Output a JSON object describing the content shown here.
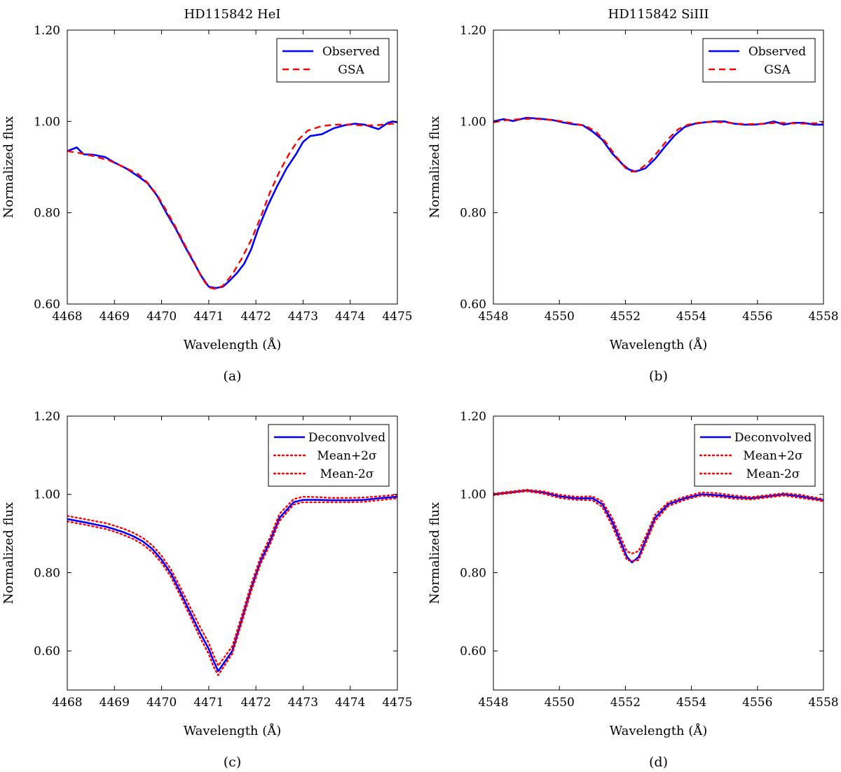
{
  "chart_data": [
    {
      "panel_label": "(a)",
      "type": "line",
      "title": "HD115842 HeI",
      "xlabel": "Wavelength (Å)",
      "ylabel": "Normalized flux",
      "xlim": [
        4468,
        4475
      ],
      "ylim": [
        0.6,
        1.2
      ],
      "xticks": [
        "4468",
        "4469",
        "4470",
        "4471",
        "4472",
        "4473",
        "4474",
        "4475"
      ],
      "yticks": [
        "0.60",
        "0.80",
        "1.00",
        "1.20"
      ],
      "legend_position": "top-right",
      "series": [
        {
          "name": "Observed",
          "color": "#0000ff",
          "style": "solid",
          "x": [
            4468.0,
            4468.2,
            4468.35,
            4468.55,
            4468.8,
            4469.0,
            4469.25,
            4469.5,
            4469.7,
            4469.9,
            4470.1,
            4470.3,
            4470.5,
            4470.7,
            4470.85,
            4471.0,
            4471.15,
            4471.3,
            4471.45,
            4471.6,
            4471.75,
            4471.9,
            4472.05,
            4472.25,
            4472.45,
            4472.65,
            4472.85,
            4473.0,
            4473.15,
            4473.4,
            4473.65,
            4473.9,
            4474.1,
            4474.3,
            4474.45,
            4474.6,
            4474.8,
            4474.9,
            4475.0
          ],
          "y": [
            0.935,
            0.943,
            0.928,
            0.927,
            0.922,
            0.91,
            0.897,
            0.88,
            0.865,
            0.838,
            0.8,
            0.765,
            0.725,
            0.688,
            0.66,
            0.638,
            0.635,
            0.638,
            0.652,
            0.668,
            0.688,
            0.72,
            0.765,
            0.815,
            0.858,
            0.897,
            0.928,
            0.955,
            0.968,
            0.972,
            0.985,
            0.992,
            0.995,
            0.993,
            0.988,
            0.983,
            0.997,
            1.0,
            0.998
          ]
        },
        {
          "name": "GSA",
          "color": "#ff0000",
          "style": "dashed",
          "x": [
            4468.0,
            4468.3,
            4468.6,
            4468.9,
            4469.2,
            4469.5,
            4469.7,
            4469.9,
            4470.1,
            4470.3,
            4470.5,
            4470.7,
            4470.85,
            4471.0,
            4471.15,
            4471.3,
            4471.5,
            4471.7,
            4471.9,
            4472.1,
            4472.3,
            4472.5,
            4472.7,
            4472.9,
            4473.1,
            4473.4,
            4473.7,
            4474.0,
            4474.3,
            4474.6,
            4474.8,
            4475.0
          ],
          "y": [
            0.935,
            0.93,
            0.923,
            0.914,
            0.9,
            0.885,
            0.866,
            0.84,
            0.805,
            0.768,
            0.728,
            0.69,
            0.658,
            0.636,
            0.633,
            0.64,
            0.665,
            0.7,
            0.74,
            0.79,
            0.845,
            0.89,
            0.928,
            0.96,
            0.98,
            0.99,
            0.993,
            0.993,
            0.991,
            0.992,
            0.994,
            0.996
          ]
        }
      ]
    },
    {
      "panel_label": "(b)",
      "type": "line",
      "title": "HD115842 SiIII",
      "xlabel": "Wavelength (Å)",
      "ylabel": "Normalized flux",
      "xlim": [
        4548,
        4558
      ],
      "ylim": [
        0.6,
        1.2
      ],
      "xticks": [
        "4548",
        "4550",
        "4552",
        "4554",
        "4556",
        "4558"
      ],
      "yticks": [
        "0.60",
        "0.80",
        "1.00",
        "1.20"
      ],
      "legend_position": "top-right",
      "series": [
        {
          "name": "Observed",
          "color": "#0000ff",
          "style": "solid",
          "x": [
            4548.0,
            4548.3,
            4548.6,
            4549.0,
            4549.4,
            4549.8,
            4550.1,
            4550.4,
            4550.7,
            4551.0,
            4551.3,
            4551.6,
            4551.9,
            4552.1,
            4552.3,
            4552.6,
            4552.9,
            4553.2,
            4553.5,
            4553.8,
            4554.1,
            4554.4,
            4554.7,
            4555.0,
            4555.3,
            4555.6,
            4555.9,
            4556.2,
            4556.5,
            4556.8,
            4557.1,
            4557.4,
            4557.7,
            4558.0
          ],
          "y": [
            1.0,
            1.005,
            1.001,
            1.008,
            1.006,
            1.003,
            0.998,
            0.994,
            0.992,
            0.978,
            0.96,
            0.93,
            0.907,
            0.895,
            0.89,
            0.897,
            0.918,
            0.945,
            0.97,
            0.988,
            0.995,
            0.998,
            1.0,
            1.0,
            0.995,
            0.993,
            0.993,
            0.995,
            1.0,
            0.993,
            0.997,
            0.997,
            0.993,
            0.993
          ]
        },
        {
          "name": "GSA",
          "color": "#ff0000",
          "style": "dashed",
          "x": [
            4548.0,
            4548.4,
            4548.8,
            4549.2,
            4549.6,
            4550.0,
            4550.4,
            4550.8,
            4551.1,
            4551.4,
            4551.7,
            4552.0,
            4552.2,
            4552.4,
            4552.7,
            4553.0,
            4553.3,
            4553.6,
            4553.9,
            4554.2,
            4554.6,
            4555.0,
            4555.4,
            4555.8,
            4556.2,
            4556.6,
            4557.0,
            4557.4,
            4557.8,
            4558.0
          ],
          "y": [
            0.998,
            1.003,
            1.005,
            1.006,
            1.004,
            1.001,
            0.996,
            0.99,
            0.978,
            0.955,
            0.925,
            0.898,
            0.89,
            0.893,
            0.91,
            0.935,
            0.962,
            0.983,
            0.993,
            0.997,
            0.999,
            0.998,
            0.995,
            0.994,
            0.995,
            0.997,
            0.996,
            0.995,
            0.996,
            0.998
          ]
        }
      ]
    },
    {
      "panel_label": "(c)",
      "type": "line",
      "title": "",
      "xlabel": "Wavelength (Å)",
      "ylabel": "Normalized flux",
      "xlim": [
        4468,
        4475
      ],
      "ylim": [
        0.5,
        1.2
      ],
      "xticks": [
        "4468",
        "4469",
        "4470",
        "4471",
        "4472",
        "4473",
        "4474",
        "4475"
      ],
      "yticks": [
        "0.60",
        "0.80",
        "1.00",
        "1.20"
      ],
      "legend_position": "top-right",
      "series": [
        {
          "name": "Deconvolved",
          "color": "#0000ff",
          "style": "solid",
          "x": [
            4468.0,
            4468.4,
            4468.8,
            4469.0,
            4469.2,
            4469.4,
            4469.6,
            4469.8,
            4470.0,
            4470.2,
            4470.4,
            4470.6,
            4470.8,
            4471.0,
            4471.1,
            4471.2,
            4471.5,
            4471.7,
            4471.9,
            4472.1,
            4472.3,
            4472.5,
            4472.8,
            4473.0,
            4473.3,
            4473.6,
            4474.0,
            4474.3,
            4474.6,
            4475.0
          ],
          "y": [
            0.937,
            0.928,
            0.918,
            0.911,
            0.903,
            0.893,
            0.88,
            0.861,
            0.833,
            0.798,
            0.75,
            0.7,
            0.65,
            0.605,
            0.575,
            0.548,
            0.6,
            0.68,
            0.76,
            0.83,
            0.88,
            0.94,
            0.98,
            0.986,
            0.986,
            0.985,
            0.985,
            0.986,
            0.99,
            0.994
          ]
        },
        {
          "name": "Mean+2σ",
          "color": "#ff0000",
          "style": "dotted",
          "x": [
            4468.0,
            4468.4,
            4468.8,
            4469.0,
            4469.2,
            4469.4,
            4469.6,
            4469.8,
            4470.0,
            4470.2,
            4470.4,
            4470.6,
            4470.8,
            4471.0,
            4471.1,
            4471.2,
            4471.5,
            4471.7,
            4471.9,
            4472.1,
            4472.3,
            4472.5,
            4472.8,
            4473.0,
            4473.3,
            4473.6,
            4474.0,
            4474.3,
            4474.6,
            4475.0
          ],
          "y": [
            0.945,
            0.936,
            0.927,
            0.92,
            0.912,
            0.902,
            0.889,
            0.87,
            0.843,
            0.808,
            0.762,
            0.713,
            0.665,
            0.62,
            0.59,
            0.562,
            0.612,
            0.69,
            0.77,
            0.84,
            0.89,
            0.95,
            0.988,
            0.994,
            0.993,
            0.991,
            0.991,
            0.992,
            0.995,
            0.999
          ]
        },
        {
          "name": "Mean-2σ",
          "color": "#ff0000",
          "style": "dotted",
          "x": [
            4468.0,
            4468.4,
            4468.8,
            4469.0,
            4469.2,
            4469.4,
            4469.6,
            4469.8,
            4470.0,
            4470.2,
            4470.4,
            4470.6,
            4470.8,
            4471.0,
            4471.1,
            4471.2,
            4471.5,
            4471.7,
            4471.9,
            4472.1,
            4472.3,
            4472.5,
            4472.8,
            4473.0,
            4473.3,
            4473.6,
            4474.0,
            4474.3,
            4474.6,
            4475.0
          ],
          "y": [
            0.931,
            0.922,
            0.912,
            0.905,
            0.896,
            0.886,
            0.872,
            0.853,
            0.825,
            0.789,
            0.74,
            0.69,
            0.638,
            0.592,
            0.56,
            0.538,
            0.593,
            0.672,
            0.752,
            0.822,
            0.872,
            0.932,
            0.974,
            0.98,
            0.98,
            0.98,
            0.98,
            0.981,
            0.985,
            0.99
          ]
        }
      ]
    },
    {
      "panel_label": "(d)",
      "type": "line",
      "title": "",
      "xlabel": "Wavelength (Å)",
      "ylabel": "Normalized flux",
      "xlim": [
        4548,
        4558
      ],
      "ylim": [
        0.5,
        1.2
      ],
      "xticks": [
        "4548",
        "4550",
        "4552",
        "4554",
        "4556",
        "4558"
      ],
      "yticks": [
        "0.60",
        "0.80",
        "1.00",
        "1.20"
      ],
      "legend_position": "top-right",
      "series": [
        {
          "name": "Deconvolved",
          "color": "#0000ff",
          "style": "solid",
          "x": [
            4548.0,
            4548.5,
            4549.0,
            4549.5,
            4550.0,
            4550.5,
            4551.0,
            4551.3,
            4551.6,
            4551.9,
            4552.05,
            4552.2,
            4552.4,
            4552.6,
            4552.9,
            4553.3,
            4553.8,
            4554.3,
            4554.8,
            4555.3,
            4555.8,
            4556.3,
            4556.8,
            4557.3,
            4557.8,
            4558.0
          ],
          "y": [
            1.0,
            1.005,
            1.01,
            1.005,
            0.995,
            0.99,
            0.99,
            0.975,
            0.93,
            0.87,
            0.84,
            0.826,
            0.84,
            0.88,
            0.94,
            0.975,
            0.99,
            1.0,
            0.998,
            0.993,
            0.99,
            0.995,
            1.0,
            0.995,
            0.988,
            0.985
          ]
        },
        {
          "name": "Mean+2σ",
          "color": "#ff0000",
          "style": "dotted",
          "x": [
            4548.0,
            4548.5,
            4549.0,
            4549.5,
            4550.0,
            4550.5,
            4551.0,
            4551.3,
            4551.6,
            4551.9,
            4552.05,
            4552.2,
            4552.4,
            4552.6,
            4552.9,
            4553.3,
            4553.8,
            4554.3,
            4554.8,
            4555.3,
            4555.8,
            4556.3,
            4556.8,
            4557.3,
            4557.8,
            4558.0
          ],
          "y": [
            1.002,
            1.007,
            1.012,
            1.008,
            0.999,
            0.994,
            0.995,
            0.982,
            0.94,
            0.882,
            0.854,
            0.849,
            0.855,
            0.89,
            0.948,
            0.98,
            0.994,
            1.005,
            1.003,
            0.997,
            0.993,
            0.998,
            1.003,
            0.999,
            0.991,
            0.988
          ]
        },
        {
          "name": "Mean-2σ",
          "color": "#ff0000",
          "style": "dotted",
          "x": [
            4548.0,
            4548.5,
            4549.0,
            4549.5,
            4550.0,
            4550.5,
            4551.0,
            4551.3,
            4551.6,
            4551.9,
            4552.05,
            4552.2,
            4552.4,
            4552.6,
            4552.9,
            4553.3,
            4553.8,
            4554.3,
            4554.8,
            4555.3,
            4555.8,
            4556.3,
            4556.8,
            4557.3,
            4557.8,
            4558.0
          ],
          "y": [
            0.998,
            1.003,
            1.008,
            1.002,
            0.991,
            0.986,
            0.985,
            0.968,
            0.92,
            0.86,
            0.832,
            0.83,
            0.832,
            0.872,
            0.932,
            0.97,
            0.986,
            0.997,
            0.994,
            0.989,
            0.987,
            0.992,
            0.997,
            0.991,
            0.985,
            0.982
          ]
        }
      ]
    }
  ]
}
